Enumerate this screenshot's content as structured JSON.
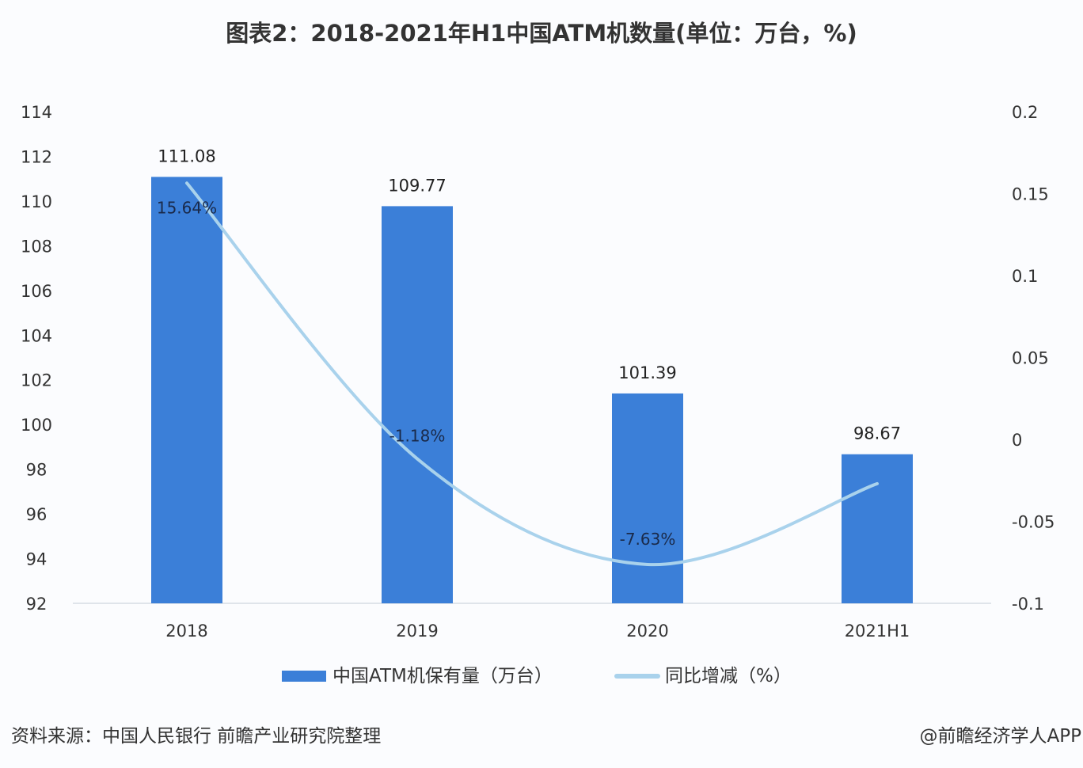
{
  "chart_data": {
    "type": "bar+line",
    "title": "图表2：2018-2021年H1中国ATM机数量(单位：万台，%)",
    "categories": [
      "2018",
      "2019",
      "2020",
      "2021H1"
    ],
    "series": [
      {
        "name": "中国ATM机保有量（万台）",
        "type": "bar",
        "axis": "left",
        "values": [
          111.08,
          109.77,
          101.39,
          98.67
        ],
        "labels": [
          "111.08",
          "109.77",
          "101.39",
          "98.67"
        ],
        "color": "#3b7fd8"
      },
      {
        "name": "同比增减（%）",
        "type": "line",
        "axis": "right",
        "smooth": true,
        "values": [
          0.1564,
          -0.0118,
          -0.0763,
          -0.027
        ],
        "labels": [
          "15.64%",
          "-1.18%",
          "-7.63%",
          ""
        ],
        "color": "#a9d2ec"
      }
    ],
    "y_left": {
      "ylim": [
        92,
        114
      ],
      "ticks": [
        "92",
        "94",
        "96",
        "98",
        "100",
        "102",
        "104",
        "106",
        "108",
        "110",
        "112",
        "114"
      ]
    },
    "y_right": {
      "ylim": [
        -0.1,
        0.2
      ],
      "ticks": [
        "-0.1",
        "-0.05",
        "0",
        "0.05",
        "0.1",
        "0.15",
        "0.2"
      ]
    },
    "grid": false,
    "legend": "bottom"
  },
  "footer": {
    "source": "资料来源：中国人民银行 前瞻产业研究院整理",
    "credit": "@前瞻经济学人APP"
  }
}
